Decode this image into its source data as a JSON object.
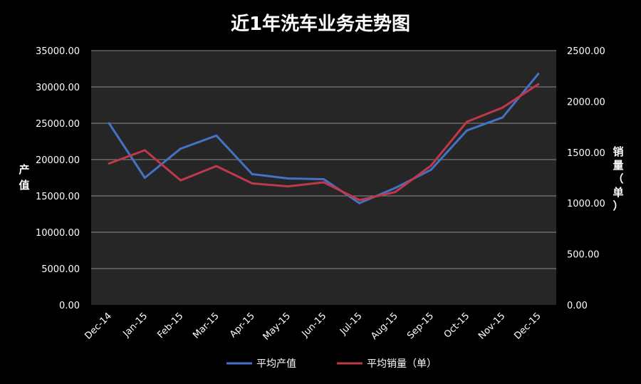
{
  "chart_data": {
    "type": "line",
    "title": "近1年洗车业务走势图",
    "categories": [
      "Dec-14",
      "Jan-15",
      "Feb-15",
      "Mar-15",
      "Apr-15",
      "May-15",
      "Jun-15",
      "Jul-15",
      "Aug-15",
      "Sep-15",
      "Oct-15",
      "Nov-15",
      "Dec-15"
    ],
    "y_left": {
      "label": "产值",
      "range": [
        0,
        35000
      ],
      "ticks": [
        "0.00",
        "5000.00",
        "10000.00",
        "15000.00",
        "20000.00",
        "25000.00",
        "30000.00",
        "35000.00"
      ]
    },
    "y_right": {
      "label": "销量（单）",
      "range": [
        0,
        2500
      ],
      "ticks": [
        "0.00",
        "500.00",
        "1000.00",
        "1500.00",
        "2000.00",
        "2500.00"
      ]
    },
    "series": [
      {
        "name": "平均产值",
        "axis": "left",
        "color": "#4472C4",
        "values": [
          25000,
          17500,
          21500,
          23300,
          18000,
          17400,
          17300,
          14000,
          16100,
          18600,
          24000,
          25800,
          31800
        ]
      },
      {
        "name": "平均销量（单）",
        "axis": "right",
        "color": "#C0394B",
        "values": [
          1390,
          1520,
          1225,
          1365,
          1195,
          1165,
          1205,
          1030,
          1110,
          1370,
          1800,
          1940,
          2170
        ]
      }
    ],
    "grid": true,
    "legend": "bottom"
  }
}
